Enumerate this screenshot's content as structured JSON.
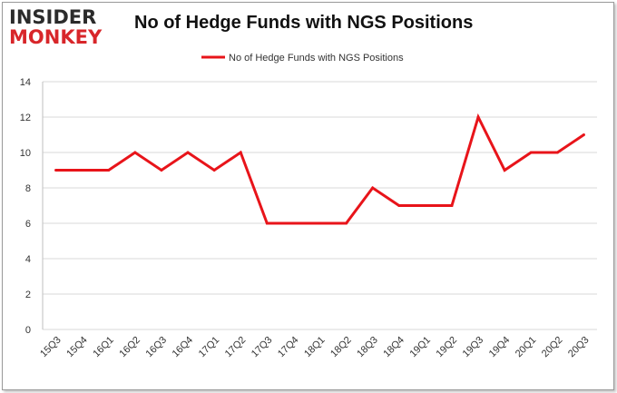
{
  "logo": {
    "line1": "INSIDER",
    "line2": "MONKEY"
  },
  "colors": {
    "series": "#e8141a",
    "grid": "#d9d9d9",
    "logo_red": "#d8262a"
  },
  "chart_data": {
    "type": "line",
    "title": "No of Hedge Funds with NGS Positions",
    "xlabel": "",
    "ylabel": "",
    "ylim": [
      0,
      14
    ],
    "yticks": [
      0,
      2,
      4,
      6,
      8,
      10,
      12,
      14
    ],
    "grid": true,
    "legend": "top-center",
    "categories": [
      "15Q3",
      "15Q4",
      "16Q1",
      "16Q2",
      "16Q3",
      "16Q4",
      "17Q1",
      "17Q2",
      "17Q3",
      "17Q4",
      "18Q1",
      "18Q2",
      "18Q3",
      "18Q4",
      "19Q1",
      "19Q2",
      "19Q3",
      "19Q4",
      "20Q1",
      "20Q2",
      "20Q3"
    ],
    "series": [
      {
        "name": "No of Hedge Funds with NGS Positions",
        "values": [
          9,
          9,
          9,
          10,
          9,
          10,
          9,
          10,
          6,
          6,
          6,
          6,
          8,
          7,
          7,
          7,
          12,
          9,
          10,
          10,
          11
        ]
      }
    ]
  }
}
